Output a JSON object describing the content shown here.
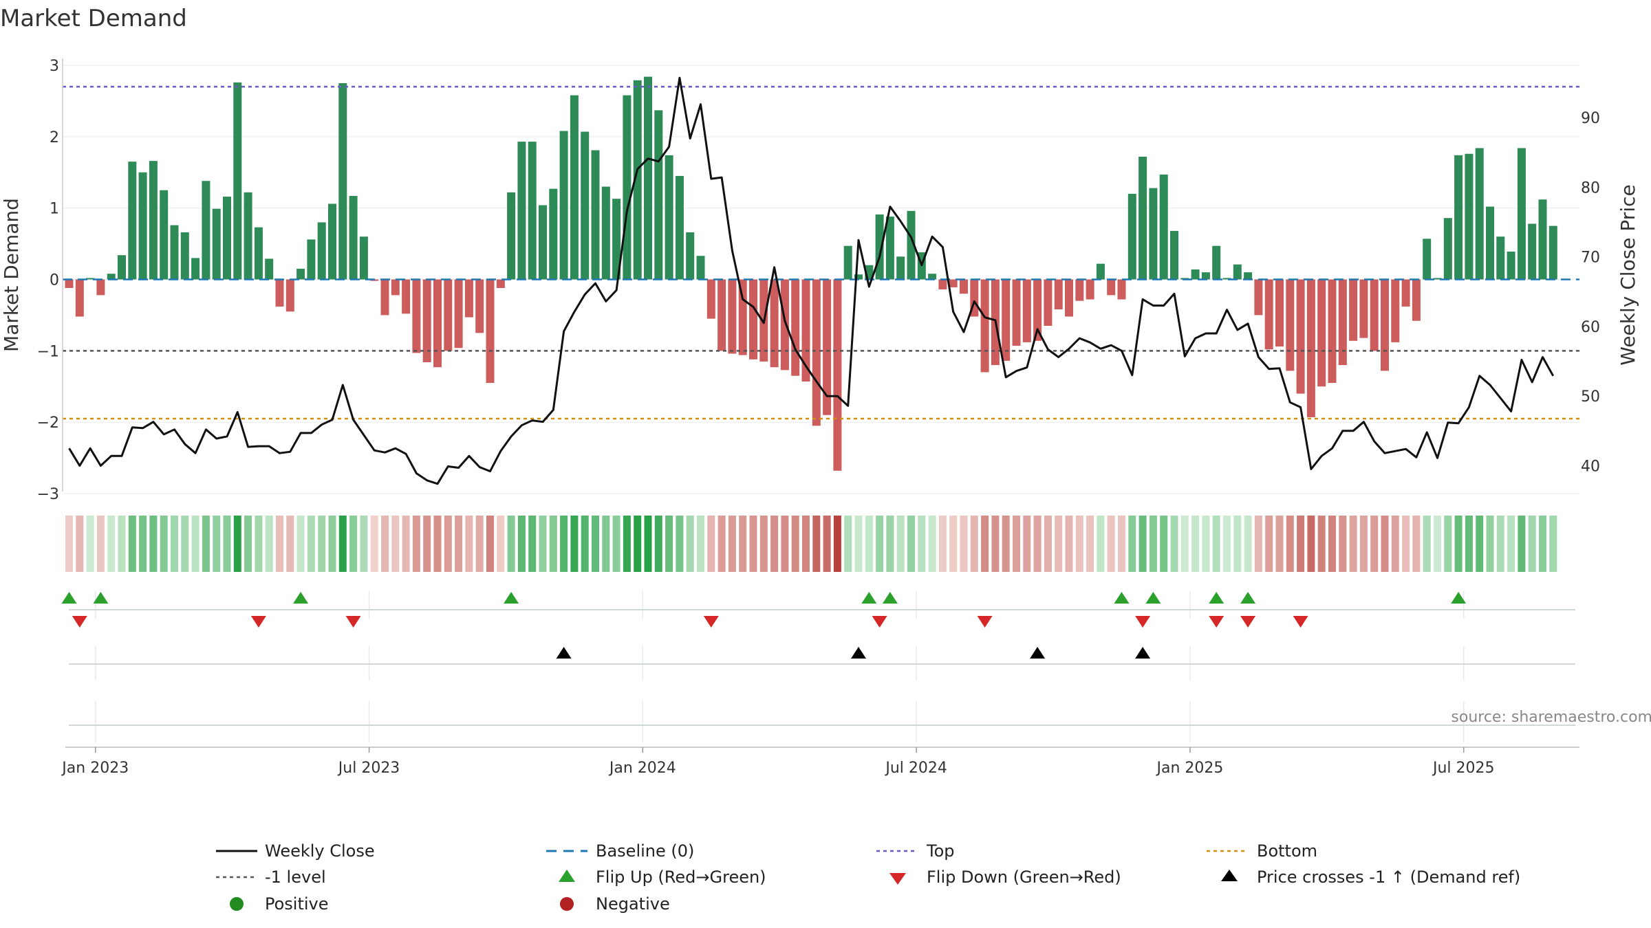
{
  "title": "Market Demand",
  "source_text": "source: sharemaestro.com",
  "colors": {
    "positive": "#2e8b57",
    "negative": "#cd5c5c",
    "close": "#111111",
    "baseline": "#1f77b4",
    "top": "#6a5acd",
    "minus1": "#555555",
    "bottom": "#d4900a",
    "flip_up": "#2ca02c",
    "flip_down": "#d62728",
    "cross": "#000000",
    "pos_dot": "#228b22",
    "neg_dot": "#b22222"
  },
  "chart_data": {
    "type": "bar",
    "title": "Market Demand",
    "xlabel": "",
    "ylabel": "Market Demand",
    "y2label": "Weekly Close Price",
    "ylim": [
      -3.0,
      3.0
    ],
    "y2lim": [
      36.0,
      97.5
    ],
    "yticks": [
      "3",
      "2",
      "1",
      "0",
      "−1",
      "−2",
      "−3"
    ],
    "ytick_values": [
      3,
      2,
      1,
      0,
      -1,
      -2,
      -3
    ],
    "y2ticks": [
      "90",
      "80",
      "70",
      "60",
      "50",
      "40"
    ],
    "y2tick_values": [
      90,
      80,
      70,
      60,
      50,
      40
    ],
    "xticks": [
      "Jan 2023",
      "Jul 2023",
      "Jan 2024",
      "Jul 2024",
      "Jan 2025",
      "Jul 2025"
    ],
    "xtick_weeks": [
      0.5,
      26.5,
      52.5,
      78.5,
      104.5,
      130.5
    ],
    "levels": {
      "top": 2.7,
      "minus1": -1.0,
      "bottom": -1.95,
      "baseline": 0
    },
    "start_week_offset": -2,
    "demand": [
      -0.12,
      -0.52,
      0.02,
      -0.22,
      0.08,
      0.34,
      1.65,
      1.5,
      1.66,
      1.25,
      0.76,
      0.66,
      0.3,
      1.38,
      0.99,
      1.16,
      2.76,
      1.22,
      0.73,
      0.29,
      -0.38,
      -0.45,
      0.15,
      0.56,
      0.8,
      1.06,
      2.75,
      1.17,
      0.6,
      -0.02,
      -0.5,
      -0.22,
      -0.48,
      -1.03,
      -1.16,
      -1.23,
      -1.0,
      -0.96,
      -0.53,
      -0.75,
      -1.45,
      -0.12,
      1.22,
      1.93,
      1.93,
      1.04,
      1.27,
      2.08,
      2.58,
      2.07,
      1.81,
      1.3,
      1.13,
      2.58,
      2.79,
      2.84,
      2.37,
      1.74,
      1.45,
      0.66,
      0.33,
      -0.55,
      -1.0,
      -1.04,
      -1.06,
      -1.12,
      -1.15,
      -1.23,
      -1.27,
      -1.35,
      -1.43,
      -2.05,
      -1.9,
      -2.68,
      0.47,
      0.07,
      0.2,
      0.91,
      0.88,
      0.32,
      0.96,
      0.38,
      0.08,
      -0.14,
      -0.11,
      -0.2,
      -0.52,
      -1.3,
      -1.2,
      -1.14,
      -0.93,
      -0.88,
      -0.86,
      -0.65,
      -0.42,
      -0.52,
      -0.3,
      -0.28,
      0.22,
      -0.22,
      -0.28,
      1.2,
      1.72,
      1.28,
      1.47,
      0.68,
      0.02,
      0.14,
      0.1,
      0.47,
      0.02,
      0.21,
      0.1,
      -0.5,
      -0.98,
      -0.94,
      -1.28,
      -1.6,
      -1.93,
      -1.5,
      -1.45,
      -1.2,
      -0.86,
      -0.82,
      -1.0,
      -1.28,
      -0.88,
      -0.38,
      -0.58,
      0.57,
      0.02,
      0.86,
      1.74,
      1.76,
      1.84,
      1.02,
      0.6,
      0.39,
      1.84,
      0.78,
      1.12,
      0.75
    ],
    "close": [
      42.5,
      40,
      42.5,
      40,
      41.4,
      41.4,
      45.5,
      45.4,
      46.3,
      44.5,
      45.2,
      43.1,
      41.8,
      45.2,
      43.9,
      44.2,
      47.7,
      42.7,
      42.8,
      42.8,
      41.8,
      42,
      44.7,
      44.7,
      45.9,
      46.6,
      51.6,
      46.6,
      44.4,
      42.2,
      41.9,
      42.5,
      41.7,
      38.9,
      37.9,
      37.4,
      39.9,
      39.7,
      41.4,
      39.8,
      39.2,
      42.1,
      44.2,
      45.8,
      46.5,
      46.3,
      48,
      59.3,
      62.1,
      64.6,
      66.2,
      63.6,
      65.2,
      76.6,
      82.6,
      84.1,
      83.7,
      85.8,
      95.7,
      87,
      91.9,
      81.2,
      81.4,
      70.9,
      63.9,
      62.8,
      60.5,
      68.5,
      60.8,
      56.7,
      54.3,
      52.1,
      50,
      50,
      48.6,
      72.4,
      65.7,
      70,
      77.2,
      75.1,
      72.8,
      68.8,
      72.9,
      71.4,
      62.1,
      59.2,
      63.6,
      61.3,
      60.9,
      52.7,
      53.6,
      54.1,
      59.6,
      56.7,
      55.6,
      56.8,
      58.3,
      57.7,
      56.8,
      57.3,
      56.5,
      53,
      63.9,
      63,
      63,
      64.7,
      55.7,
      58.3,
      59,
      59,
      62.4,
      59.5,
      60.4,
      55.6,
      53.9,
      54,
      49.1,
      48.4,
      39.5,
      41.4,
      42.5,
      45,
      45,
      46.3,
      43.5,
      41.8,
      42.1,
      42.4,
      41.2,
      44.8,
      41.1,
      46.2,
      46.1,
      48.4,
      52.9,
      51.6,
      49.7,
      47.8,
      55.2,
      52,
      55.6,
      52.9
    ],
    "flip_up_weeks": [
      -2,
      1,
      20,
      40,
      74,
      76,
      98,
      101,
      107,
      110,
      130
    ],
    "flip_down_weeks": [
      -1,
      16,
      25,
      59,
      75,
      85,
      100,
      107,
      110,
      115
    ],
    "cross_weeks": [
      45,
      73,
      90,
      100
    ]
  },
  "legend": {
    "weekly_close": "Weekly Close",
    "minus1_level": "-1 level",
    "positive": "Positive",
    "baseline": "Baseline (0)",
    "flip_up": "Flip Up (Red→Green)",
    "negative": "Negative",
    "top": "Top",
    "flip_down": "Flip Down (Green→Red)",
    "bottom": "Bottom",
    "cross": "Price crosses -1 ↑ (Demand ref)"
  }
}
